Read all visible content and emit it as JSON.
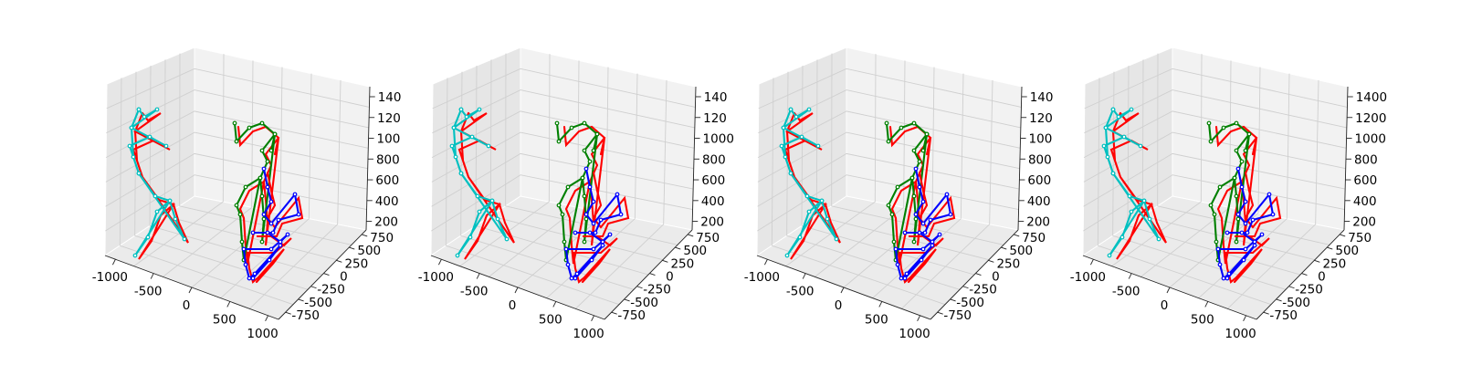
{
  "chart_data": [
    {
      "type": "line",
      "title": "",
      "xlabel": "",
      "ylabel": "",
      "zlabel": "",
      "xlim": [
        -1100,
        1100
      ],
      "ylim": [
        -900,
        900
      ],
      "zlim": [
        100,
        1450
      ],
      "x_ticks": [
        "-1000",
        "-500",
        "0",
        "500",
        "1000"
      ],
      "y_ticks": [
        "750",
        "500",
        "250",
        "0",
        "-250",
        "-500",
        "-750"
      ],
      "z_ticks": [
        "140",
        "120",
        "100",
        "800",
        "600",
        "400",
        "200"
      ],
      "grid": true,
      "colors": {
        "ground_truth": "#ff0000",
        "person1": "#00c0c0",
        "person2": "#008000",
        "person3": "#0000ff"
      }
    },
    {
      "type": "line",
      "title": "",
      "xlabel": "",
      "ylabel": "",
      "zlabel": "",
      "xlim": [
        -1100,
        1100
      ],
      "ylim": [
        -900,
        900
      ],
      "zlim": [
        100,
        1450
      ],
      "x_ticks": [
        "-1000",
        "-500",
        "0",
        "500",
        "1000"
      ],
      "y_ticks": [
        "750",
        "500",
        "250",
        "0",
        "-250",
        "-500",
        "-750"
      ],
      "z_ticks": [
        "140",
        "120",
        "1000",
        "800",
        "600",
        "400",
        "200"
      ],
      "grid": true,
      "colors": {
        "ground_truth": "#ff0000",
        "person1": "#00c0c0",
        "person2": "#008000",
        "person3": "#0000ff"
      }
    },
    {
      "type": "line",
      "title": "",
      "xlabel": "",
      "ylabel": "",
      "zlabel": "",
      "xlim": [
        -1100,
        1100
      ],
      "ylim": [
        -900,
        900
      ],
      "zlim": [
        100,
        1450
      ],
      "x_ticks": [
        "-1000",
        "-500",
        "0",
        "500",
        "1000"
      ],
      "y_ticks": [
        "750",
        "500",
        "250",
        "0",
        "-250",
        "-500",
        "-750"
      ],
      "z_ticks": [
        "140",
        "120",
        "100",
        "800",
        "600",
        "400",
        "200"
      ],
      "grid": true,
      "colors": {
        "ground_truth": "#ff0000",
        "person1": "#00c0c0",
        "person2": "#008000",
        "person3": "#0000ff"
      }
    },
    {
      "type": "line",
      "title": "",
      "xlabel": "",
      "ylabel": "",
      "zlabel": "",
      "xlim": [
        -1100,
        1100
      ],
      "ylim": [
        -900,
        900
      ],
      "zlim": [
        100,
        1450
      ],
      "x_ticks": [
        "-1000",
        "-500",
        "0",
        "500",
        "1000"
      ],
      "y_ticks": [
        "750",
        "500",
        "250",
        "0",
        "-250",
        "-500",
        "-750"
      ],
      "z_ticks": [
        "1400",
        "1200",
        "1000",
        "800",
        "600",
        "400",
        "200"
      ],
      "grid": true,
      "colors": {
        "ground_truth": "#ff0000",
        "person1": "#00c0c0",
        "person2": "#008000",
        "person3": "#0000ff"
      }
    }
  ]
}
